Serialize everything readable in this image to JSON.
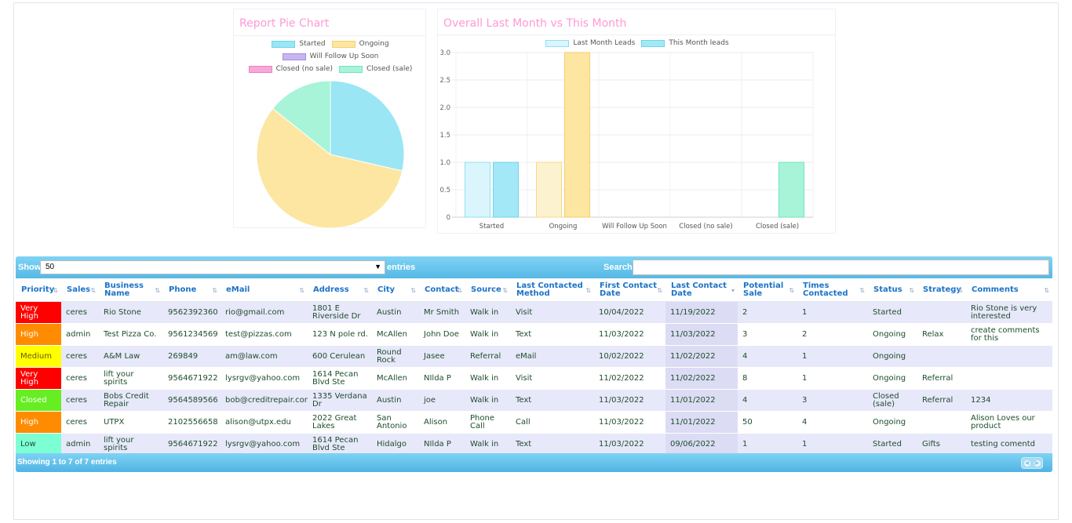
{
  "pie_chart": {
    "title": "Report Pie Chart",
    "legend": [
      {
        "label": "Started",
        "fill": "#9ae6f5",
        "border": "#6fd3ec"
      },
      {
        "label": "Ongoing",
        "fill": "#fde6a2",
        "border": "#f5cf6a"
      },
      {
        "label": "Will Follow Up Soon",
        "fill": "#c8b5f0",
        "border": "#a58de0"
      },
      {
        "label": "Closed (no sale)",
        "fill": "#f7a8d8",
        "border": "#ee7fc2"
      },
      {
        "label": "Closed (sale)",
        "fill": "#a7f4d8",
        "border": "#6fe6bd"
      }
    ]
  },
  "bar_chart": {
    "title": "Overall Last Month vs This Month"
  },
  "chart_data": [
    {
      "type": "pie",
      "title": "Report Pie Chart",
      "categories": [
        "Started",
        "Ongoing",
        "Will Follow Up Soon",
        "Closed (no sale)",
        "Closed (sale)"
      ],
      "values": [
        2,
        4,
        0,
        0,
        1
      ],
      "colors": [
        "#9ae6f5",
        "#fde6a2",
        "#c8b5f0",
        "#f7a8d8",
        "#a7f4d8"
      ]
    },
    {
      "type": "bar",
      "title": "Overall Last Month vs This Month",
      "categories": [
        "Started",
        "Ongoing",
        "Will Follow Up Soon",
        "Closed (no sale)",
        "Closed (sale)"
      ],
      "series": [
        {
          "name": "Last Month Leads",
          "values": [
            1,
            1,
            0,
            0,
            0
          ]
        },
        {
          "name": "This Month leads",
          "values": [
            1,
            3,
            0,
            0,
            1
          ]
        }
      ],
      "ylim": [
        0,
        3
      ],
      "yticks": [
        "0",
        "0.5",
        "1.0",
        "1.5",
        "2.0",
        "2.5",
        "3.0"
      ],
      "legend_position": "top",
      "grid": true,
      "category_colors": [
        {
          "last_fill": "#daf6fc",
          "last_border": "#8fe0f2",
          "this_fill": "#a3e8f7",
          "this_border": "#6fd3ec"
        },
        {
          "last_fill": "#fdf2d0",
          "last_border": "#f6d98a",
          "this_fill": "#fde6a2",
          "this_border": "#f5cf6a"
        },
        {
          "last_fill": "#e6dcf8",
          "last_border": "#c5b3ef",
          "this_fill": "#c8b5f0",
          "this_border": "#a58de0"
        },
        {
          "last_fill": "#fbd6ec",
          "last_border": "#f4aad5",
          "this_fill": "#f7a8d8",
          "this_border": "#ee7fc2"
        },
        {
          "last_fill": "#d9fbef",
          "last_border": "#a0f0d4",
          "this_fill": "#a7f4d8",
          "this_border": "#6fe6bd"
        }
      ],
      "legend_colors": [
        {
          "fill": "#daf6fc",
          "border": "#8fe0f2"
        },
        {
          "fill": "#a3e8f7",
          "border": "#6fd3ec"
        }
      ]
    }
  ],
  "table": {
    "show_label": "Show",
    "page_size": "50",
    "entries_label": "entries",
    "search_label": "Search:",
    "search_value": "",
    "columns": [
      "Priority",
      "Sales",
      "Business Name",
      "Phone",
      "eMail",
      "Address",
      "City",
      "Contact",
      "Source",
      "Last Contacted Method",
      "First Contact Date",
      "Last Contact Date",
      "Potential Sale",
      "Times Contacted",
      "Status",
      "Strategy",
      "Comments"
    ],
    "rows": [
      {
        "priority": "Very High",
        "priority_color": "#ff0000",
        "sales": "ceres",
        "business": "Rio Stone",
        "phone": "9562392360",
        "email": "rio@gmail.com",
        "address": "1801 E Riverside Dr",
        "city": "Austin",
        "contact": "Mr Smith",
        "source": "Walk in",
        "method": "Visit",
        "first": "10/04/2022",
        "last": "11/19/2022",
        "potential": "2",
        "times": "1",
        "status": "Started",
        "strategy": "",
        "comments": "Rio Stone is very interested"
      },
      {
        "priority": "High",
        "priority_color": "#ff8c00",
        "sales": "admin",
        "business": "Test Pizza Co.",
        "phone": "9561234569",
        "email": "test@pizzas.com",
        "address": "123 N pole rd.",
        "city": "McAllen",
        "contact": "John Doe",
        "source": "Walk in",
        "method": "Text",
        "first": "11/03/2022",
        "last": "11/03/2022",
        "potential": "3",
        "times": "2",
        "status": "Ongoing",
        "strategy": "Relax",
        "comments": "create comments for this"
      },
      {
        "priority": "Medium",
        "priority_color": "#ffff00",
        "sales": "ceres",
        "business": "A&M Law",
        "phone": "269849",
        "email": "am@law.com",
        "address": "600 Cerulean",
        "city": "Round Rock",
        "contact": "Jasee",
        "source": "Referral",
        "method": "eMail",
        "first": "10/02/2022",
        "last": "11/02/2022",
        "potential": "4",
        "times": "1",
        "status": "Ongoing",
        "strategy": "",
        "comments": ""
      },
      {
        "priority": "Very High",
        "priority_color": "#ff0000",
        "sales": "ceres",
        "business": "lift your spirits",
        "phone": "9564671922",
        "email": "lysrgv@yahoo.com",
        "address": "1614 Pecan Blvd Ste",
        "city": "McAllen",
        "contact": "NIlda P",
        "source": "Walk in",
        "method": "Visit",
        "first": "11/02/2022",
        "last": "11/02/2022",
        "potential": "8",
        "times": "1",
        "status": "Ongoing",
        "strategy": "Referral",
        "comments": ""
      },
      {
        "priority": "Closed",
        "priority_color": "#66ee22",
        "sales": "ceres",
        "business": "Bobs Credit Repair",
        "phone": "9564589566",
        "email": "bob@creditrepair.com",
        "address": "1335 Verdana Dr",
        "city": "Austin",
        "contact": "joe",
        "source": "Walk in",
        "method": "Text",
        "first": "11/03/2022",
        "last": "11/01/2022",
        "potential": "4",
        "times": "3",
        "status": "Closed (sale)",
        "strategy": "Referral",
        "comments": "1234"
      },
      {
        "priority": "High",
        "priority_color": "#ff8c00",
        "sales": "ceres",
        "business": "UTPX",
        "phone": "2102556658",
        "email": "alison@utpx.edu",
        "address": "2022 Great Lakes",
        "city": "San Antonio",
        "contact": "Alison",
        "source": "Phone Call",
        "method": "Call",
        "first": "11/03/2022",
        "last": "11/01/2022",
        "potential": "50",
        "times": "4",
        "status": "Ongoing",
        "strategy": "",
        "comments": "Alison Loves our product"
      },
      {
        "priority": "Low",
        "priority_color": "#7dffd4",
        "sales": "admin",
        "business": "lift your spirits",
        "phone": "9564671922",
        "email": "lysrgv@yahoo.com",
        "address": "1614 Pecan Blvd Ste",
        "city": "Hidalgo",
        "contact": "NIlda P",
        "source": "Walk in",
        "method": "Text",
        "first": "11/03/2022",
        "last": "09/06/2022",
        "potential": "1",
        "times": "1",
        "status": "Started",
        "strategy": "Gifts",
        "comments": "testing comentd"
      }
    ],
    "info": "Showing 1 to 7 of 7 entries"
  }
}
